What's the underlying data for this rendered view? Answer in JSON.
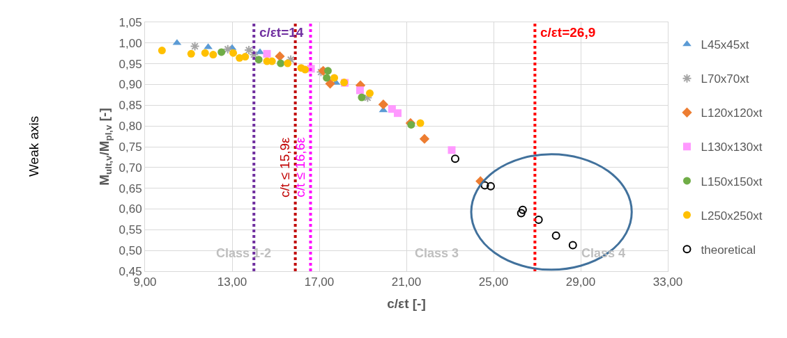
{
  "chart_data": {
    "type": "scatter",
    "xlabel": "c/εt [-]",
    "ylabel": "M$_{ult,v}$/M$_{pl,v}$ [-]",
    "xlim": [
      9,
      33
    ],
    "xticks": [
      {
        "value": 9,
        "label": "9,00"
      },
      {
        "value": 13,
        "label": "13,00"
      },
      {
        "value": 17,
        "label": "17,00"
      },
      {
        "value": 21,
        "label": "21,00"
      },
      {
        "value": 25,
        "label": "25,00"
      },
      {
        "value": 29,
        "label": "29,00"
      },
      {
        "value": 33,
        "label": "33,00"
      }
    ],
    "ylim": [
      0.45,
      1.05
    ],
    "yticks": [
      {
        "value": 0.45,
        "label": "0,45"
      },
      {
        "value": 0.5,
        "label": "0,50"
      },
      {
        "value": 0.55,
        "label": "0,55"
      },
      {
        "value": 0.6,
        "label": "0,60"
      },
      {
        "value": 0.65,
        "label": "0,65"
      },
      {
        "value": 0.7,
        "label": "0,70"
      },
      {
        "value": 0.75,
        "label": "0,75"
      },
      {
        "value": 0.8,
        "label": "0,80"
      },
      {
        "value": 0.85,
        "label": "0,85"
      },
      {
        "value": 0.9,
        "label": "0,90"
      },
      {
        "value": 0.95,
        "label": "0,95"
      },
      {
        "value": 1.0,
        "label": "1,00"
      },
      {
        "value": 1.05,
        "label": "1,05"
      }
    ],
    "grid": true,
    "legend": "right",
    "series": [
      {
        "name": "L45x45xt",
        "color": "#5b9bd5",
        "marker": "triangle",
        "x": [
          10.47,
          11.9,
          13.0,
          14.28,
          17.77,
          19.94
        ],
        "values": [
          1.0,
          0.99,
          0.988,
          0.978,
          0.904,
          0.838
        ]
      },
      {
        "name": "L70x70xt",
        "color": "#a5a5a5",
        "marker": "cross",
        "x": [
          11.29,
          12.8,
          13.77,
          14.0,
          15.69,
          17.08,
          19.22
        ],
        "values": [
          0.992,
          0.985,
          0.983,
          0.972,
          0.96,
          0.93,
          0.868
        ]
      },
      {
        "name": "L120x120xt",
        "color": "#ed7d31",
        "marker": "diamond",
        "x": [
          15.19,
          17.18,
          17.5,
          18.89,
          19.94,
          21.19,
          21.83,
          24.4
        ],
        "values": [
          0.968,
          0.933,
          0.902,
          0.898,
          0.852,
          0.807,
          0.769,
          0.667
        ]
      },
      {
        "name": "L130x130xt",
        "color": "#ff99ff",
        "marker": "square",
        "x": [
          14.6,
          16.62,
          18.17,
          18.87,
          20.34,
          20.6,
          23.08
        ],
        "values": [
          0.974,
          0.938,
          0.904,
          0.886,
          0.841,
          0.831,
          0.742
        ]
      },
      {
        "name": "L150x150xt",
        "color": "#70ad47",
        "marker": "circle",
        "x": [
          12.51,
          14.22,
          15.23,
          17.4,
          17.34,
          18.95,
          21.22
        ],
        "values": [
          0.978,
          0.96,
          0.951,
          0.933,
          0.916,
          0.869,
          0.803
        ]
      },
      {
        "name": "L250x250xt",
        "color": "#ffc000",
        "marker": "circle",
        "x": [
          9.78,
          11.12,
          11.76,
          12.13,
          13.05,
          13.34,
          13.6,
          14.6,
          14.83,
          15.55,
          16.17,
          16.35,
          17.69,
          18.14,
          19.32,
          21.64
        ],
        "values": [
          0.982,
          0.974,
          0.976,
          0.972,
          0.976,
          0.964,
          0.967,
          0.956,
          0.956,
          0.951,
          0.94,
          0.936,
          0.916,
          0.905,
          0.879,
          0.807
        ]
      },
      {
        "name": "theoretical",
        "color": "#000000",
        "x": [
          23.24,
          24.6,
          24.87,
          26.27,
          26.34,
          27.07,
          27.87,
          28.64
        ],
        "values": [
          0.721,
          0.657,
          0.655,
          0.59,
          0.598,
          0.574,
          0.536,
          0.513
        ]
      }
    ],
    "ref_lines": [
      {
        "axis": "x",
        "value": 14,
        "label": "c/εt=14",
        "color": "#7030a0",
        "line_style": "dotted"
      },
      {
        "axis": "x",
        "value": 15.9,
        "label": "c/t ≤ 15,9ε",
        "color": "#c00000",
        "line_style": "dotted"
      },
      {
        "axis": "x",
        "value": 16.6,
        "label": "c/t ≤ 16,6ε",
        "color": "#ff00ff",
        "line_style": "dotted"
      },
      {
        "axis": "x",
        "value": 26.9,
        "label": "c/εt=26,9",
        "color": "#ff0000",
        "line_style": "dotted"
      }
    ],
    "annotations": [
      "Class 1-2",
      "Class 3",
      "Class 4",
      "Weak axis"
    ]
  }
}
